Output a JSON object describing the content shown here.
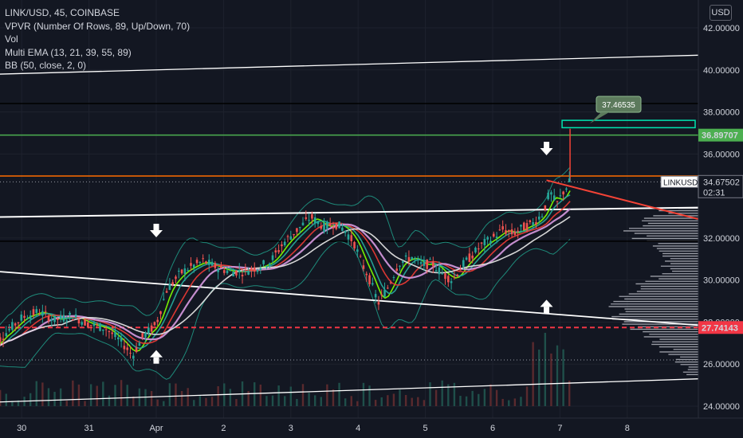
{
  "legend": {
    "symbol": "LINK/USD, 45, COINBASE",
    "vpvr": "VPVR (Number Of Rows, 89, Up/Down, 70)",
    "vol": "Vol",
    "ema": "Multi EMA (13, 21, 39, 55, 89)",
    "bb": "BB (50, close, 2, 0)"
  },
  "currency_button": "USD",
  "colors": {
    "background": "#131722",
    "up": "#26a69a",
    "down": "#ef5350",
    "green_line": "#4caf50",
    "orange_line": "#ff6d00",
    "red_dash": "#f23645",
    "trend_white": "#ffffff",
    "trend_red": "#f44336",
    "ema13": "#7cfc00",
    "ema21": "#26a69a",
    "ema39": "#e53935",
    "ema55": "#ce93d8",
    "ema89": "#e0e0e0",
    "bb": "#1e8a7a",
    "cyan_box": "#00e5b0"
  },
  "chart_data": {
    "type": "candlestick",
    "y_axis": {
      "min": 23.5,
      "max": 43.5,
      "ticks": [
        "42.00000",
        "40.00000",
        "38.00000",
        "36.00000",
        "32.00000",
        "30.00000",
        "28.00000",
        "26.00000",
        "24.00000"
      ]
    },
    "x_axis": {
      "labels": [
        "30",
        "31",
        "Apr",
        "2",
        "3",
        "4",
        "5",
        "6",
        "7",
        "8"
      ],
      "label_positions_idx": [
        1,
        3,
        5,
        7,
        9,
        11,
        13,
        15,
        17,
        19
      ]
    },
    "price_labels": {
      "green": {
        "value": 36.89707,
        "text": "36.89707"
      },
      "red": {
        "value": 27.74143,
        "text": "27.74143"
      },
      "current": {
        "symbol": "LINKUSD",
        "value": 34.67502,
        "text": "34.67502",
        "countdown": "02:31"
      },
      "callout": {
        "value": 37.46535,
        "text": "37.46535"
      }
    },
    "horizontal_levels": [
      {
        "name": "green-level",
        "value": 36.9
      },
      {
        "name": "orange-level",
        "value": 34.95
      },
      {
        "name": "black-level-1",
        "value": 38.4
      },
      {
        "name": "black-level-2",
        "value": 31.85
      },
      {
        "name": "red-dashed-level",
        "value": 27.74
      }
    ],
    "price_path": [
      [
        0,
        26.6
      ],
      [
        0.6,
        27.6
      ],
      [
        1.0,
        28.2
      ],
      [
        1.5,
        28.5
      ],
      [
        2.0,
        28.1
      ],
      [
        2.5,
        28.3
      ],
      [
        3.0,
        27.9
      ],
      [
        3.5,
        27.7
      ],
      [
        4.0,
        27.0
      ],
      [
        4.3,
        26.4
      ],
      [
        4.6,
        27.3
      ],
      [
        5.0,
        27.9
      ],
      [
        5.3,
        29.5
      ],
      [
        5.7,
        30.3
      ],
      [
        6.0,
        30.6
      ],
      [
        6.4,
        30.9
      ],
      [
        6.8,
        30.6
      ],
      [
        7.2,
        30.4
      ],
      [
        7.6,
        30.4
      ],
      [
        8.0,
        30.6
      ],
      [
        8.4,
        30.9
      ],
      [
        8.8,
        31.8
      ],
      [
        9.2,
        32.4
      ],
      [
        9.6,
        33.0
      ],
      [
        10.0,
        32.5
      ],
      [
        10.3,
        32.7
      ],
      [
        10.6,
        32.4
      ],
      [
        10.9,
        31.7
      ],
      [
        11.1,
        30.8
      ],
      [
        11.3,
        30.2
      ],
      [
        11.6,
        28.9
      ],
      [
        11.9,
        29.7
      ],
      [
        12.2,
        30.8
      ],
      [
        12.6,
        31.1
      ],
      [
        12.9,
        30.7
      ],
      [
        13.2,
        30.8
      ],
      [
        13.5,
        30.3
      ],
      [
        13.8,
        30.0
      ],
      [
        14.1,
        30.7
      ],
      [
        14.4,
        31.2
      ],
      [
        14.7,
        31.7
      ],
      [
        15.0,
        32.0
      ],
      [
        15.3,
        32.4
      ],
      [
        15.6,
        32.2
      ],
      [
        15.9,
        32.5
      ],
      [
        16.2,
        32.7
      ],
      [
        16.5,
        33.2
      ],
      [
        16.7,
        34.2
      ],
      [
        16.9,
        33.6
      ],
      [
        17.1,
        34.2
      ],
      [
        17.3,
        34.7
      ]
    ],
    "ema_offsets": [
      {
        "name": "ema13",
        "lag": 0.3
      },
      {
        "name": "ema21",
        "lag": 0.55
      },
      {
        "name": "ema39",
        "lag": 1.0
      },
      {
        "name": "ema55",
        "lag": 1.45
      },
      {
        "name": "ema89",
        "lag": 2.2
      }
    ],
    "markers": [
      {
        "type": "arrow-down",
        "idx": 5.0,
        "value": 32.3
      },
      {
        "type": "arrow-up",
        "idx": 5.0,
        "value": 26.4
      },
      {
        "type": "arrow-down",
        "idx": 16.6,
        "value": 36.2
      },
      {
        "type": "arrow-up",
        "idx": 16.6,
        "value": 28.8
      }
    ]
  }
}
